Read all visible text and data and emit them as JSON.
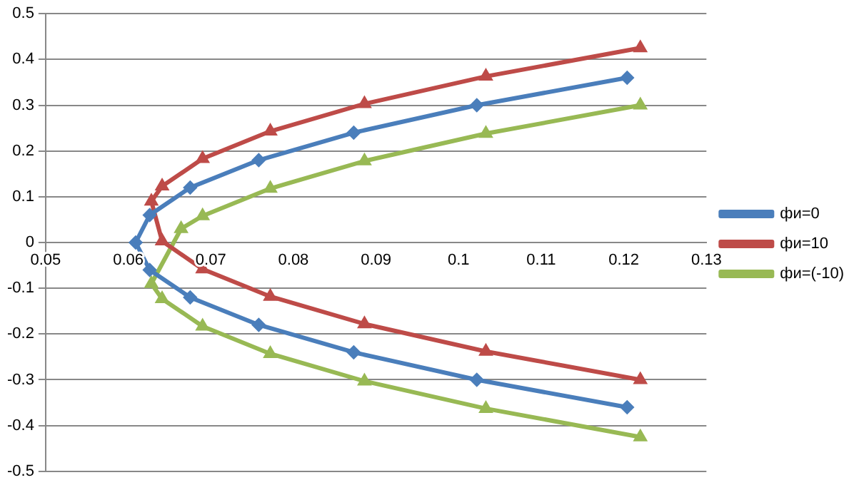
{
  "chart_data": {
    "type": "line",
    "xlim": [
      0.05,
      0.13
    ],
    "xticks": [
      0.05,
      0.06,
      0.07,
      0.08,
      0.09,
      0.1,
      0.11,
      0.12,
      0.13
    ],
    "ylim": [
      -0.5,
      0.5
    ],
    "yticks": [
      -0.5,
      -0.4,
      -0.3,
      -0.2,
      -0.1,
      0,
      0.1,
      0.2,
      0.3,
      0.4,
      0.5
    ],
    "grid": "y",
    "legend": "right",
    "line_style": "solid",
    "series": [
      {
        "name": "фи=0",
        "color": "#4a7ebb",
        "marker": "diamond",
        "x": [
          0.1204,
          0.1022,
          0.0873,
          0.0758,
          0.0675,
          0.0626,
          0.0609,
          0.0626,
          0.0675,
          0.0758,
          0.0873,
          0.1022,
          0.1204
        ],
        "values": [
          0.36,
          0.3,
          0.24,
          0.18,
          0.12,
          0.06,
          0,
          -0.06,
          -0.12,
          -0.18,
          -0.24,
          -0.3,
          -0.36
        ]
      },
      {
        "name": "фи=10",
        "color": "#be4b48",
        "marker": "triangle",
        "x": [
          0.122,
          0.1033,
          0.0886,
          0.0772,
          0.069,
          0.0641,
          0.0628,
          0.0641,
          0.069,
          0.0772,
          0.0886,
          0.1033,
          0.122
        ],
        "values": [
          0.425,
          0.363,
          0.303,
          0.243,
          0.183,
          0.123,
          0.09,
          0.003,
          -0.058,
          -0.118,
          -0.178,
          -0.238,
          -0.3
        ]
      },
      {
        "name": "фи=(-10)",
        "color": "#98b954",
        "marker": "triangle",
        "x": [
          0.122,
          0.1033,
          0.0886,
          0.0772,
          0.069,
          0.0664,
          0.0628,
          0.0641,
          0.069,
          0.0772,
          0.0886,
          0.1033,
          0.122
        ],
        "values": [
          0.3,
          0.238,
          0.178,
          0.118,
          0.058,
          0.03,
          -0.09,
          -0.123,
          -0.183,
          -0.243,
          -0.303,
          -0.363,
          -0.425
        ]
      }
    ]
  }
}
